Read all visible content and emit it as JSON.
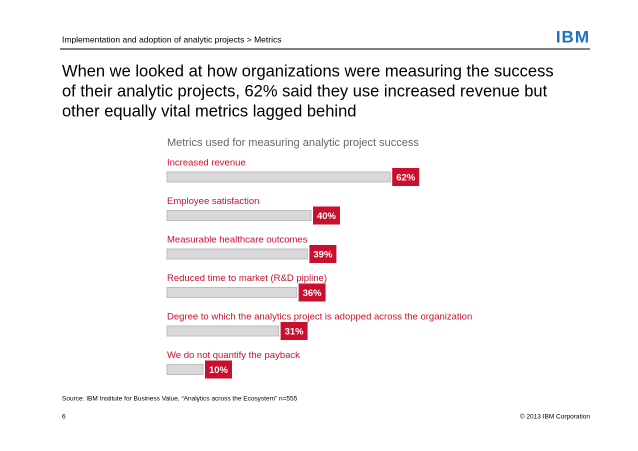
{
  "header": {
    "breadcrumb": "Implementation and adoption of analytic projects > Metrics",
    "logo": "IBM"
  },
  "headline": [
    "When we looked at how organizations were measuring the success",
    "of their analytic projects, 62% said they use increased revenue but",
    "other equally vital metrics lagged behind"
  ],
  "chart_data": {
    "type": "bar",
    "title": "Metrics used for measuring analytic project success",
    "categories": [
      "Increased revenue",
      "Employee satisfaction",
      "Measurable healthcare outcomes",
      "Reduced time to market (R&D pipline)",
      "Degree to which the analytics project is adopped across the organization",
      "We do not quantify the payback"
    ],
    "values": [
      62,
      40,
      39,
      36,
      31,
      10
    ],
    "value_labels": [
      "62%",
      "40%",
      "39%",
      "36%",
      "31%",
      "10%"
    ],
    "color": "#c8102e"
  },
  "footer": {
    "source": "Source:  IBM Institute for Business Value, “Analytics across the Ecosystem” n=555",
    "page": "6",
    "copyright": "© 2013 IBM Corporation"
  }
}
